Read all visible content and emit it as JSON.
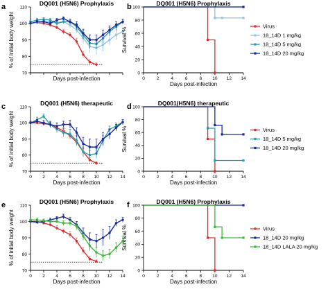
{
  "colors": {
    "Virus": "#d42f2f",
    "18_14D 1 mg/kg": "#8fc3e3",
    "18_14D 5 mg/kg": "#2a9aa8",
    "18_14D 20 mg/kg": "#1a2a99",
    "18_14D LALA 20 mg/kg": "#3db83d",
    "Virus_errorbar": "#e07c7c",
    "reference_line": "#444444"
  },
  "chart_data": [
    {
      "id": "a",
      "letter": "a",
      "type": "line",
      "title": "DQ001 (H5N6) Prophylaxis",
      "xlabel": "Days post-infection",
      "ylabel": "% of initial body weight",
      "xlim": [
        0,
        14
      ],
      "ylim": [
        70,
        110
      ],
      "xticks": [
        0,
        2,
        4,
        6,
        8,
        10,
        12,
        14
      ],
      "yticks": [
        70,
        80,
        90,
        100,
        110
      ],
      "reference_line_y": 75,
      "show_x_tick_labels": false,
      "series": [
        {
          "name": "Virus",
          "x": [
            0,
            1,
            2,
            3,
            4,
            5,
            6,
            7,
            8,
            9,
            10
          ],
          "y": [
            100,
            100.5,
            100,
            99,
            97.5,
            95,
            93,
            89,
            81,
            76.5,
            75
          ],
          "err": [
            1,
            1,
            1,
            1,
            1,
            1.5,
            1.5,
            2,
            2,
            1.5,
            1
          ]
        },
        {
          "name": "18_14D 1 mg/kg",
          "x": [
            0,
            1,
            2,
            3,
            4,
            5,
            6,
            7,
            8,
            9,
            10,
            11,
            12,
            13,
            14
          ],
          "y": [
            100,
            100.5,
            101.5,
            101,
            100.5,
            101,
            99,
            96,
            91,
            86,
            85,
            87,
            90,
            93,
            95
          ],
          "err": [
            1,
            1,
            1,
            1,
            1,
            1,
            1.5,
            2,
            3,
            4,
            4,
            4,
            3,
            3,
            2
          ]
        },
        {
          "name": "18_14D 5 mg/kg",
          "x": [
            0,
            1,
            2,
            3,
            4,
            5,
            6,
            7,
            8,
            9,
            10,
            11,
            12,
            13,
            14
          ],
          "y": [
            101,
            102,
            102.5,
            102,
            100,
            101,
            101,
            98,
            93,
            88,
            87.5,
            91,
            95,
            98,
            101
          ],
          "err": [
            1,
            1,
            1,
            1,
            1,
            1,
            1.5,
            2,
            2.5,
            3,
            3,
            3,
            2.5,
            2,
            1.5
          ]
        },
        {
          "name": "18_14D 20 mg/kg",
          "x": [
            0,
            1,
            2,
            3,
            4,
            5,
            6,
            7,
            8,
            9,
            10,
            11,
            12,
            13,
            14
          ],
          "y": [
            100,
            101,
            101,
            100,
            102,
            103,
            101,
            99,
            94,
            90,
            90,
            93,
            96,
            99,
            101
          ],
          "err": [
            1,
            1,
            1,
            1,
            1,
            1,
            1.5,
            2,
            2.5,
            3,
            3,
            3,
            2.5,
            2,
            1.5
          ]
        }
      ]
    },
    {
      "id": "b",
      "letter": "b",
      "type": "line",
      "title": "DQ001 (H5N6) Prophylaxis",
      "xlabel": "Days post-infection",
      "ylabel": "Survival %",
      "xlim": [
        0,
        14
      ],
      "ylim": [
        0,
        100
      ],
      "xticks": [
        0,
        2,
        4,
        6,
        8,
        10,
        12,
        14
      ],
      "yticks": [
        0,
        20,
        40,
        60,
        80,
        100
      ],
      "step": true,
      "legend": "right",
      "series": [
        {
          "name": "Virus",
          "x": [
            0,
            9,
            9,
            10,
            10
          ],
          "y": [
            100,
            100,
            50,
            50,
            0
          ],
          "markers": [
            [
              9,
              50
            ],
            [
              10,
              0
            ]
          ]
        },
        {
          "name": "18_14D 1 mg/kg",
          "x": [
            0,
            10,
            10,
            14
          ],
          "y": [
            100,
            100,
            83.3,
            83.3
          ],
          "markers": [
            [
              10,
              83.3
            ],
            [
              11,
              83.3
            ],
            [
              14,
              83.3
            ]
          ]
        },
        {
          "name": "18_14D 5 mg/kg",
          "x": [
            0,
            14
          ],
          "y": [
            100,
            100
          ],
          "markers": [
            [
              14,
              100
            ]
          ]
        },
        {
          "name": "18_14D 20 mg/kg",
          "x": [
            0,
            14
          ],
          "y": [
            100,
            100
          ],
          "markers": [
            [
              14,
              100
            ]
          ]
        }
      ]
    },
    {
      "id": "c",
      "letter": "c",
      "type": "line",
      "title": "DQ001 (H5N6) therapeutic",
      "xlabel": "Days post-infection",
      "ylabel": "% of initial body weight",
      "xlim": [
        0,
        14
      ],
      "ylim": [
        70,
        110
      ],
      "xticks": [
        0,
        2,
        4,
        6,
        8,
        10,
        12,
        14
      ],
      "yticks": [
        70,
        80,
        90,
        100,
        110
      ],
      "reference_line_y": 75,
      "show_x_tick_labels": true,
      "series": [
        {
          "name": "Virus",
          "x": [
            0,
            1,
            2,
            3,
            4,
            5,
            6,
            7,
            8,
            9,
            10
          ],
          "y": [
            100,
            100,
            99.5,
            99,
            97,
            95,
            92,
            88,
            82,
            77,
            75
          ],
          "err": [
            1,
            1,
            1,
            1.5,
            1.5,
            2,
            2,
            2,
            2,
            1.5,
            1
          ]
        },
        {
          "name": "18_14D 5 mg/kg",
          "x": [
            0,
            1,
            2,
            3,
            4,
            5,
            6,
            7,
            8,
            9,
            10,
            11,
            12,
            13,
            14
          ],
          "y": [
            100,
            102,
            104,
            99,
            96,
            94,
            93,
            89,
            82,
            80,
            81,
            89,
            96,
            98,
            100.5
          ],
          "err": [
            1,
            1.5,
            1.5,
            2,
            2,
            2.5,
            3,
            3,
            3,
            3,
            3,
            3,
            2,
            2,
            1.5
          ]
        },
        {
          "name": "18_14D 20 mg/kg",
          "x": [
            0,
            1,
            2,
            3,
            4,
            5,
            6,
            7,
            8,
            9,
            10,
            11,
            12,
            13,
            14
          ],
          "y": [
            100,
            101,
            100,
            99,
            98,
            99,
            99,
            94,
            87,
            85,
            85,
            90,
            93,
            97,
            100.5
          ],
          "err": [
            1,
            1,
            1.5,
            1.5,
            2,
            2,
            2.5,
            3,
            4,
            5,
            5,
            4,
            3,
            2,
            1.5
          ]
        }
      ]
    },
    {
      "id": "d",
      "letter": "d",
      "type": "line",
      "title": "DQ001(H5N6) therapeutic",
      "xlabel": "Days post-infection",
      "ylabel": "Survival %",
      "xlim": [
        0,
        14
      ],
      "ylim": [
        0,
        100
      ],
      "xticks": [
        0,
        2,
        4,
        6,
        8,
        10,
        12,
        14
      ],
      "yticks": [
        0,
        20,
        40,
        60,
        80,
        100
      ],
      "step": true,
      "legend": "right",
      "series": [
        {
          "name": "Virus",
          "x": [
            0,
            9,
            9,
            10,
            10
          ],
          "y": [
            100,
            100,
            50,
            50,
            0
          ],
          "markers": [
            [
              9,
              50
            ],
            [
              10,
              0
            ]
          ]
        },
        {
          "name": "18_14D 5 mg/kg",
          "x": [
            0,
            9,
            9,
            10,
            10,
            14
          ],
          "y": [
            100,
            100,
            66.7,
            66.7,
            16.7,
            16.7
          ],
          "markers": [
            [
              9,
              66.7
            ],
            [
              10,
              16.7
            ],
            [
              14,
              16.7
            ]
          ]
        },
        {
          "name": "18_14D 20 mg/kg",
          "x": [
            0,
            10,
            10,
            11,
            11,
            14
          ],
          "y": [
            100,
            100,
            71.4,
            71.4,
            57.1,
            57.1
          ],
          "markers": [
            [
              10,
              71.4
            ],
            [
              11,
              57.1
            ],
            [
              14,
              57.1
            ]
          ]
        }
      ]
    },
    {
      "id": "e",
      "letter": "e",
      "type": "line",
      "title": "DQ001 (H5N6) Prophylaxis",
      "xlabel": "Days post-infection",
      "ylabel": "% of initial body weight",
      "xlim": [
        0,
        14
      ],
      "ylim": [
        70,
        110
      ],
      "xticks": [
        0,
        2,
        4,
        6,
        8,
        10,
        12,
        14
      ],
      "yticks": [
        70,
        80,
        90,
        100,
        110
      ],
      "reference_line_y": 75,
      "show_x_tick_labels": true,
      "series": [
        {
          "name": "Virus",
          "x": [
            0,
            1,
            2,
            3,
            4,
            5,
            6,
            7,
            8,
            9,
            10
          ],
          "y": [
            100,
            100,
            99,
            98,
            96,
            94,
            92,
            88,
            82,
            77,
            75.5
          ],
          "err": [
            1,
            1,
            1,
            1,
            1.5,
            1.5,
            2,
            2,
            2,
            1.5,
            1
          ]
        },
        {
          "name": "18_14D 20 mg/kg",
          "x": [
            0,
            1,
            2,
            3,
            4,
            5,
            6,
            7,
            8,
            9,
            10,
            11,
            12,
            13,
            14
          ],
          "y": [
            100,
            99.5,
            100,
            101,
            102,
            103,
            101,
            98,
            93,
            89,
            88,
            90,
            93,
            99,
            101
          ],
          "err": [
            1,
            1,
            1,
            1,
            1,
            1.5,
            1.5,
            2,
            3,
            4,
            4,
            5,
            4,
            2,
            1.5
          ]
        },
        {
          "name": "18_14D LALA 20 mg/kg",
          "x": [
            0,
            1,
            2,
            3,
            4,
            5,
            6,
            7,
            8,
            9,
            10,
            11,
            12,
            13,
            14
          ],
          "y": [
            101,
            101,
            100.5,
            100,
            100,
            99,
            99,
            97,
            91,
            85,
            81,
            79,
            80,
            84,
            88
          ],
          "err": [
            1,
            1,
            1,
            1,
            1,
            1.5,
            1.5,
            2,
            2.5,
            3,
            3,
            3,
            3,
            3,
            3
          ]
        }
      ]
    },
    {
      "id": "f",
      "letter": "f",
      "type": "line",
      "title": "DQ001 (H5N6) Prophylaxis",
      "xlabel": "Days post-infection",
      "ylabel": "Survival %",
      "xlim": [
        0,
        14
      ],
      "ylim": [
        0,
        100
      ],
      "xticks": [
        0,
        2,
        4,
        6,
        8,
        10,
        12,
        14
      ],
      "yticks": [
        0,
        20,
        40,
        60,
        80,
        100
      ],
      "step": true,
      "legend": "right",
      "series": [
        {
          "name": "Virus",
          "x": [
            0,
            9,
            9,
            10,
            10
          ],
          "y": [
            100,
            100,
            50,
            50,
            0
          ],
          "markers": [
            [
              9,
              50
            ],
            [
              10,
              0
            ]
          ]
        },
        {
          "name": "18_14D 20 mg/kg",
          "x": [
            0,
            14
          ],
          "y": [
            100,
            100
          ],
          "markers": [
            [
              14,
              100
            ]
          ]
        },
        {
          "name": "18_14D LALA 20 mg/kg",
          "x": [
            0,
            10,
            10,
            11,
            11,
            14
          ],
          "y": [
            100,
            100,
            66.7,
            66.7,
            50,
            50
          ],
          "markers": [
            [
              10,
              66.7
            ],
            [
              11,
              50
            ],
            [
              14,
              50
            ]
          ]
        }
      ]
    }
  ]
}
